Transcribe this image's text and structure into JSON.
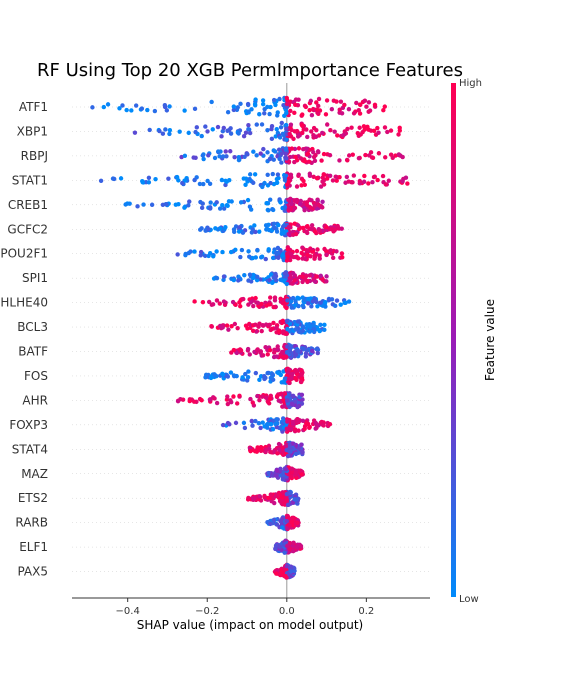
{
  "chart_data": {
    "type": "scatter",
    "subtype": "shap-beeswarm",
    "title": "RF Using Top 20 XGB PermImportance Features",
    "xlabel": "SHAP value (impact on model output)",
    "xlim": [
      -0.54,
      0.36
    ],
    "xticks": [
      -0.4,
      -0.2,
      0.0,
      0.2
    ],
    "xtick_labels": [
      "−0.4",
      "−0.2",
      "0.0",
      "0.2"
    ],
    "colorbar": {
      "label": "Feature value",
      "high": "High",
      "low": "Low"
    },
    "colors": {
      "low": "#008bfb",
      "mid": "#9a1bb7",
      "high": "#ff0052",
      "zero_line": "#999999"
    },
    "features": [
      {
        "name": "ATF1",
        "min": -0.51,
        "max": 0.25,
        "neg_density": 1.0,
        "pos_density": 1.0,
        "spread": 0.38,
        "neg_color": 0.05,
        "pos_color": 0.9
      },
      {
        "name": "XBP1",
        "min": -0.39,
        "max": 0.3,
        "neg_density": 1.0,
        "pos_density": 1.0,
        "spread": 0.36,
        "neg_color": 0.15,
        "pos_color": 0.9
      },
      {
        "name": "RBPJ",
        "min": -0.29,
        "max": 0.3,
        "neg_density": 1.0,
        "pos_density": 0.9,
        "spread": 0.34,
        "neg_color": 0.2,
        "pos_color": 0.85
      },
      {
        "name": "STAT1",
        "min": -0.47,
        "max": 0.32,
        "neg_density": 0.8,
        "pos_density": 1.0,
        "spread": 0.3,
        "neg_color": 0.05,
        "pos_color": 0.9
      },
      {
        "name": "CREB1",
        "min": -0.42,
        "max": 0.09,
        "neg_density": 0.7,
        "pos_density": 0.8,
        "spread": 0.25,
        "neg_color": 0.05,
        "pos_color": 0.75
      },
      {
        "name": "GCFC2",
        "min": -0.22,
        "max": 0.14,
        "neg_density": 0.8,
        "pos_density": 0.9,
        "spread": 0.25,
        "neg_color": 0.1,
        "pos_color": 0.85
      },
      {
        "name": "POU2F1",
        "min": -0.28,
        "max": 0.14,
        "neg_density": 0.8,
        "pos_density": 0.9,
        "spread": 0.28,
        "neg_color": 0.1,
        "pos_color": 0.9
      },
      {
        "name": "SPI1",
        "min": -0.19,
        "max": 0.1,
        "neg_density": 0.8,
        "pos_density": 0.8,
        "spread": 0.24,
        "neg_color": 0.1,
        "pos_color": 0.8
      },
      {
        "name": "BHLHE40",
        "min": -0.24,
        "max": 0.16,
        "neg_density": 0.9,
        "pos_density": 0.8,
        "spread": 0.25,
        "neg_color": 0.9,
        "pos_color": 0.1
      },
      {
        "name": "BCL3",
        "min": -0.19,
        "max": 0.1,
        "neg_density": 0.9,
        "pos_density": 0.9,
        "spread": 0.28,
        "neg_color": 0.9,
        "pos_color": 0.1
      },
      {
        "name": "BATF",
        "min": -0.14,
        "max": 0.08,
        "neg_density": 0.9,
        "pos_density": 0.9,
        "spread": 0.28,
        "neg_color": 0.85,
        "pos_color": 0.25
      },
      {
        "name": "FOS",
        "min": -0.21,
        "max": 0.04,
        "neg_density": 0.5,
        "pos_density": 1.0,
        "spread": 0.3,
        "neg_color": 0.05,
        "pos_color": 0.9
      },
      {
        "name": "AHR",
        "min": -0.28,
        "max": 0.04,
        "neg_density": 0.5,
        "pos_density": 0.9,
        "spread": 0.3,
        "neg_color": 0.9,
        "pos_color": 0.3
      },
      {
        "name": "FOXP3",
        "min": -0.16,
        "max": 0.11,
        "neg_density": 0.5,
        "pos_density": 1.0,
        "spread": 0.3,
        "neg_color": 0.15,
        "pos_color": 0.85
      },
      {
        "name": "STAT4",
        "min": -0.1,
        "max": 0.04,
        "neg_density": 0.6,
        "pos_density": 1.0,
        "spread": 0.3,
        "neg_color": 0.9,
        "pos_color": 0.3
      },
      {
        "name": "MAZ",
        "min": -0.05,
        "max": 0.04,
        "neg_density": 0.6,
        "pos_density": 1.0,
        "spread": 0.28,
        "neg_color": 0.3,
        "pos_color": 0.9
      },
      {
        "name": "ETS2",
        "min": -0.1,
        "max": 0.03,
        "neg_density": 0.7,
        "pos_density": 1.0,
        "spread": 0.28,
        "neg_color": 0.9,
        "pos_color": 0.3
      },
      {
        "name": "RARB",
        "min": -0.05,
        "max": 0.03,
        "neg_density": 0.6,
        "pos_density": 1.0,
        "spread": 0.28,
        "neg_color": 0.2,
        "pos_color": 0.9
      },
      {
        "name": "ELF1",
        "min": -0.03,
        "max": 0.04,
        "neg_density": 0.7,
        "pos_density": 1.0,
        "spread": 0.28,
        "neg_color": 0.3,
        "pos_color": 0.8
      },
      {
        "name": "PAX5",
        "min": -0.03,
        "max": 0.02,
        "neg_density": 0.7,
        "pos_density": 1.0,
        "spread": 0.28,
        "neg_color": 0.9,
        "pos_color": 0.3
      }
    ]
  }
}
